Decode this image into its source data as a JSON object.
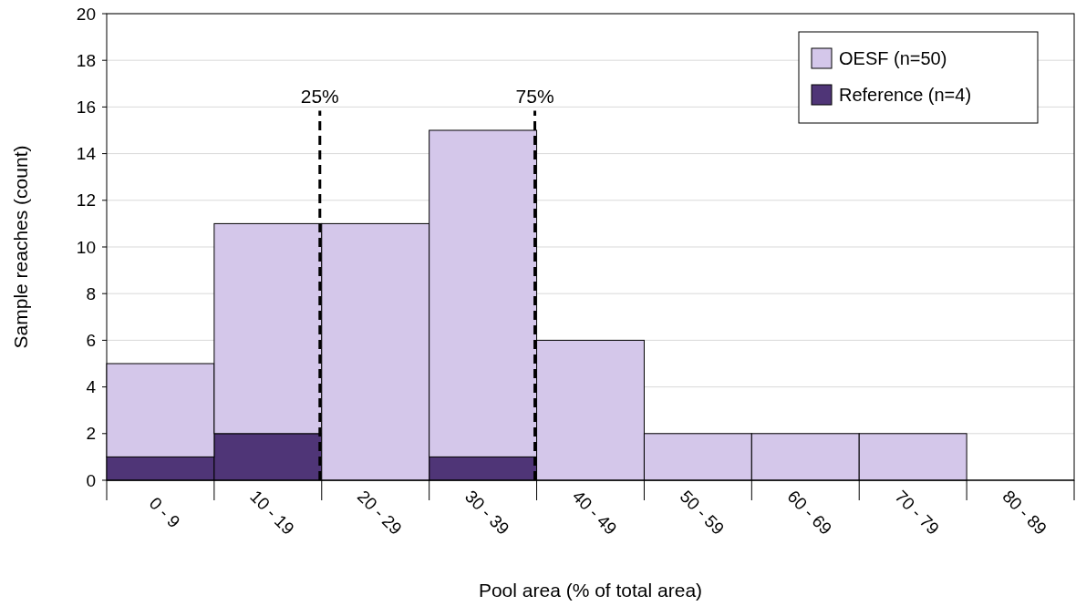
{
  "chart_data": {
    "type": "bar",
    "xlabel": "Pool area (% of total area)",
    "ylabel": "Sample reaches (count)",
    "categories": [
      "0 - 9",
      "10 - 19",
      "20 - 29",
      "30 - 39",
      "40 - 49",
      "50 - 59",
      "60 - 69",
      "70 - 79",
      "80 - 89"
    ],
    "stacked": true,
    "series": [
      {
        "name": "Reference (n=4)",
        "color": "#4f3577",
        "values": [
          1,
          2,
          0,
          1,
          0,
          0,
          0,
          0,
          0
        ]
      },
      {
        "name": "OESF (n=50)",
        "color": "#d4c7ea",
        "values": [
          4,
          9,
          11,
          14,
          6,
          2,
          2,
          2,
          0
        ]
      }
    ],
    "ylim": [
      0,
      20
    ],
    "yticks": [
      0,
      2,
      4,
      6,
      8,
      10,
      12,
      14,
      16,
      18,
      20
    ],
    "grid": "y",
    "legend": "top right",
    "annotations": [
      {
        "text": "25%"
      },
      {
        "text": "75%"
      }
    ]
  }
}
